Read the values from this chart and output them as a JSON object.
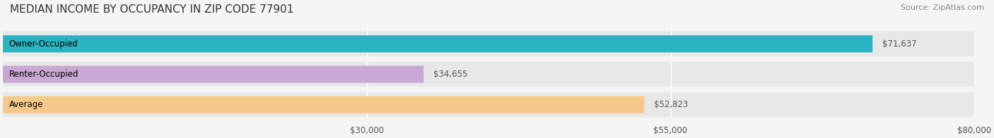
{
  "title": "MEDIAN INCOME BY OCCUPANCY IN ZIP CODE 77901",
  "source": "Source: ZipAtlas.com",
  "categories": [
    "Owner-Occupied",
    "Renter-Occupied",
    "Average"
  ],
  "values": [
    71637,
    34655,
    52823
  ],
  "bar_colors": [
    "#29b4c1",
    "#c9a8d4",
    "#f5c98a"
  ],
  "bar_labels": [
    "$71,637",
    "$34,655",
    "$52,823"
  ],
  "xlim": [
    0,
    80000
  ],
  "xticks": [
    30000,
    55000,
    80000
  ],
  "xticklabels": [
    "$30,000",
    "$55,000",
    "$80,000"
  ],
  "background_color": "#f5f5f5",
  "bar_background_color": "#e8e8e8",
  "title_fontsize": 11,
  "label_fontsize": 8.5,
  "value_fontsize": 8.5,
  "source_fontsize": 8
}
